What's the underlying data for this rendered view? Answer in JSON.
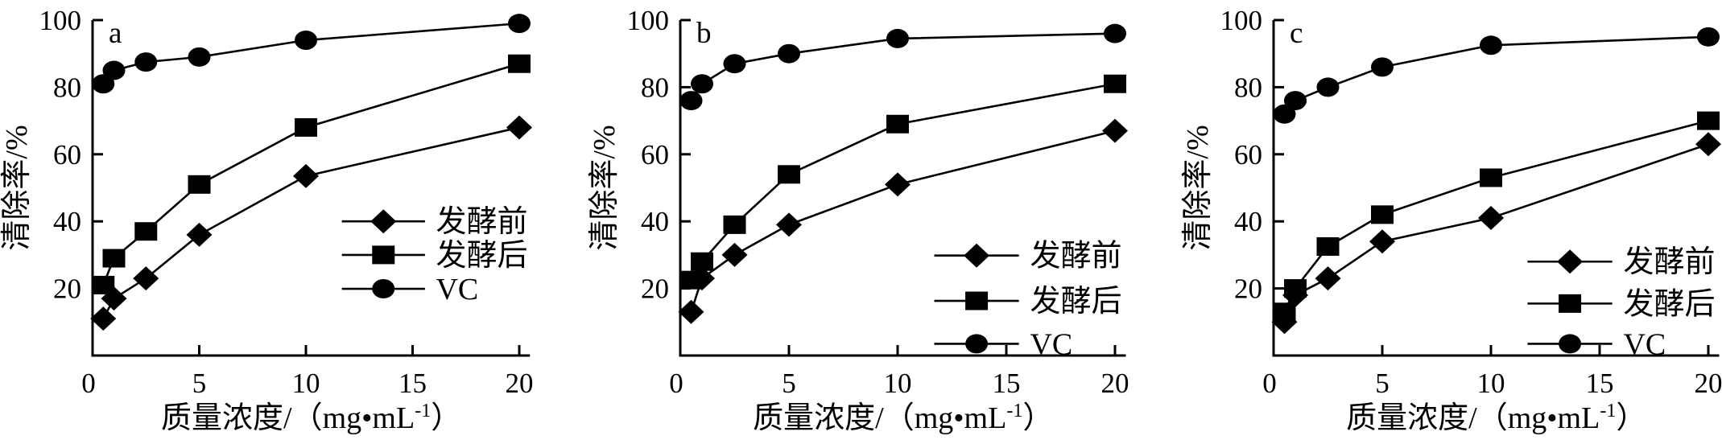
{
  "page": {
    "background_color": "#ffffff",
    "ink_color": "#000000"
  },
  "chart_data": [
    {
      "type": "line",
      "panel_label": "a",
      "ylabel": "清除率/%",
      "xlabel": {
        "prefix": "质量浓度/（mg•mL",
        "superscript": "-1",
        "suffix": "）"
      },
      "x": [
        0.5,
        1,
        2.5,
        5,
        10,
        20
      ],
      "xticks": [
        0,
        5,
        10,
        15,
        20
      ],
      "yticks": [
        20,
        40,
        60,
        80,
        100
      ],
      "xlim": [
        0,
        20.5
      ],
      "ylim": [
        0,
        100
      ],
      "grid": false,
      "legend_position": "inside-lower-right",
      "series": [
        {
          "name": "发酵前",
          "marker": "diamond",
          "values": [
            11,
            17,
            23,
            36,
            53.5,
            68
          ]
        },
        {
          "name": "发酵后",
          "marker": "square",
          "values": [
            21,
            29,
            37,
            51,
            68,
            87
          ]
        },
        {
          "name": "VC",
          "marker": "circle",
          "values": [
            81,
            85,
            87.5,
            89,
            94,
            99
          ]
        }
      ]
    },
    {
      "type": "line",
      "panel_label": "b",
      "ylabel": "清除率/%",
      "xlabel": {
        "prefix": "质量浓度/（mg•mL",
        "superscript": "-1",
        "suffix": "）"
      },
      "x": [
        0.5,
        1,
        2.5,
        5,
        10,
        20
      ],
      "xticks": [
        0,
        5,
        10,
        15,
        20
      ],
      "yticks": [
        20,
        40,
        60,
        80,
        100
      ],
      "xlim": [
        0,
        20.5
      ],
      "ylim": [
        0,
        100
      ],
      "grid": false,
      "legend_position": "inside-lower-right",
      "series": [
        {
          "name": "发酵前",
          "marker": "diamond",
          "values": [
            13,
            23,
            30,
            39,
            51,
            67
          ]
        },
        {
          "name": "发酵后",
          "marker": "square",
          "values": [
            22.5,
            28,
            39,
            54,
            69,
            81
          ]
        },
        {
          "name": "VC",
          "marker": "circle",
          "values": [
            76,
            81,
            87,
            90,
            94.5,
            96
          ]
        }
      ]
    },
    {
      "type": "line",
      "panel_label": "c",
      "ylabel": "清除率/%",
      "xlabel": {
        "prefix": "质量浓度/（mg•mL",
        "superscript": "-1",
        "suffix": "）"
      },
      "x": [
        0.5,
        1,
        2.5,
        5,
        10,
        20
      ],
      "xticks": [
        0,
        5,
        10,
        15,
        20
      ],
      "yticks": [
        20,
        40,
        60,
        80,
        100
      ],
      "xlim": [
        0,
        20.5
      ],
      "ylim": [
        0,
        100
      ],
      "grid": false,
      "legend_position": "inside-lower-right",
      "series": [
        {
          "name": "发酵前",
          "marker": "diamond",
          "values": [
            10,
            18,
            23,
            34,
            41,
            63
          ]
        },
        {
          "name": "发酵后",
          "marker": "square",
          "values": [
            13,
            20,
            32.5,
            42,
            53,
            70
          ]
        },
        {
          "name": "VC",
          "marker": "circle",
          "values": [
            72,
            76,
            80,
            86,
            92.5,
            95
          ]
        }
      ]
    }
  ]
}
